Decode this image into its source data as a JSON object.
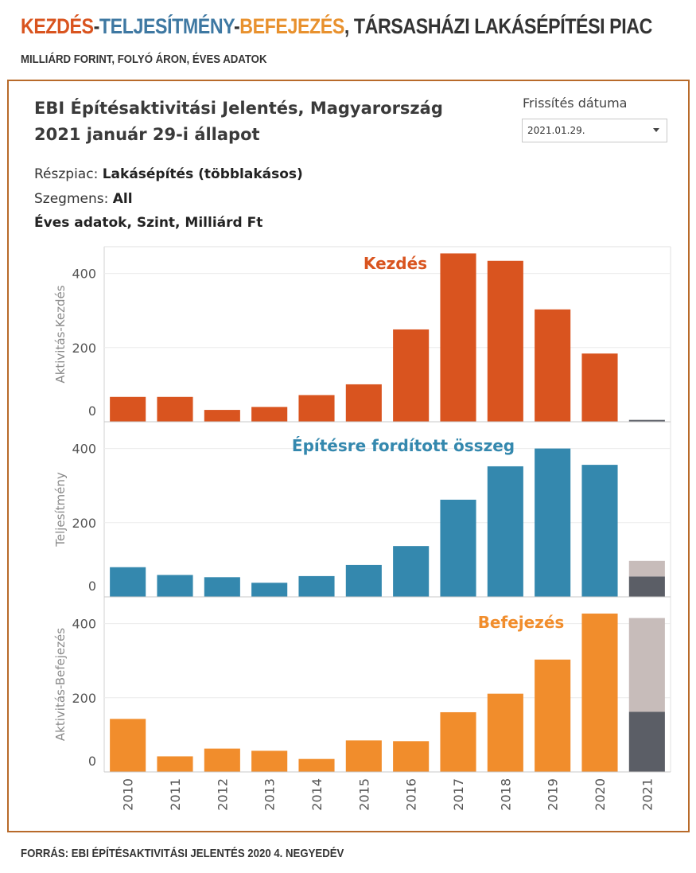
{
  "header": {
    "title_parts": [
      {
        "text": "KEZDÉS",
        "color": "#d9541f"
      },
      {
        "text": "-",
        "color": "#333333"
      },
      {
        "text": "TELJESÍTMÉNY",
        "color": "#3e78a2"
      },
      {
        "text": "-",
        "color": "#333333"
      },
      {
        "text": "BEFEJEZÉS",
        "color": "#e8912e"
      },
      {
        "text": ", TÁRSASHÁZI LAKÁSÉPÍTÉSI PIAC",
        "color": "#333333"
      }
    ],
    "subtitle": "MILLIÁRD FORINT, FOLYÓ ÁRON, ÉVES ADATOK"
  },
  "report": {
    "title_line1": "EBI Építésaktivitási Jelentés, Magyarország",
    "title_line2": "2021 január 29-i állapot"
  },
  "filter": {
    "label": "Frissítés dátuma",
    "value": "2021.01.29."
  },
  "info": {
    "submarket_label": "Részpiac:",
    "submarket_value": "Lakásépítés (többlakásos)",
    "segment_label": "Szegmens:",
    "segment_value": "All",
    "data_desc": "Éves adatok, Szint, Milliárd Ft"
  },
  "footer": {
    "source": "FORRÁS: EBI ÉPÍTÉSAKTIVITÁSI JELENTÉS 2020 4. NEGYEDÉV"
  },
  "chart_data": {
    "type": "bar",
    "categories": [
      "2010",
      "2011",
      "2012",
      "2013",
      "2014",
      "2015",
      "2016",
      "2017",
      "2018",
      "2019",
      "2020",
      "2021"
    ],
    "yticks": [
      0,
      200,
      400
    ],
    "panels": [
      {
        "name": "kezdes",
        "ylabel": "Aktivitás-Kezdés",
        "annotation": "Kezdés",
        "color": "#d9541f",
        "values": [
          67,
          67,
          32,
          40,
          72,
          101,
          249,
          454,
          434,
          303,
          184,
          5
        ],
        "special": [
          {
            "category": "2021",
            "segments": [
              {
                "value": 5,
                "color": "#5b5e66"
              }
            ]
          }
        ]
      },
      {
        "name": "teljesitmeny",
        "ylabel": "Teljesítmény",
        "annotation": "Építésre fordított összeg",
        "color": "#3488ae",
        "values": [
          80,
          59,
          53,
          38,
          56,
          86,
          137,
          262,
          352,
          400,
          356,
          97
        ],
        "special": [
          {
            "category": "2021",
            "segments": [
              {
                "value": 55,
                "color": "#5b5e66"
              },
              {
                "value": 42,
                "color": "#c7bcba"
              }
            ]
          }
        ]
      },
      {
        "name": "befejezes",
        "ylabel": "Aktivitás-Befejezés",
        "annotation": "Befejezés",
        "color": "#f18d2c",
        "values": [
          143,
          42,
          63,
          57,
          35,
          85,
          83,
          161,
          211,
          303,
          427,
          415
        ],
        "special": [
          {
            "category": "2021",
            "segments": [
              {
                "value": 162,
                "color": "#5b5e66"
              },
              {
                "value": 253,
                "color": "#c7bcba"
              }
            ]
          }
        ]
      }
    ]
  }
}
